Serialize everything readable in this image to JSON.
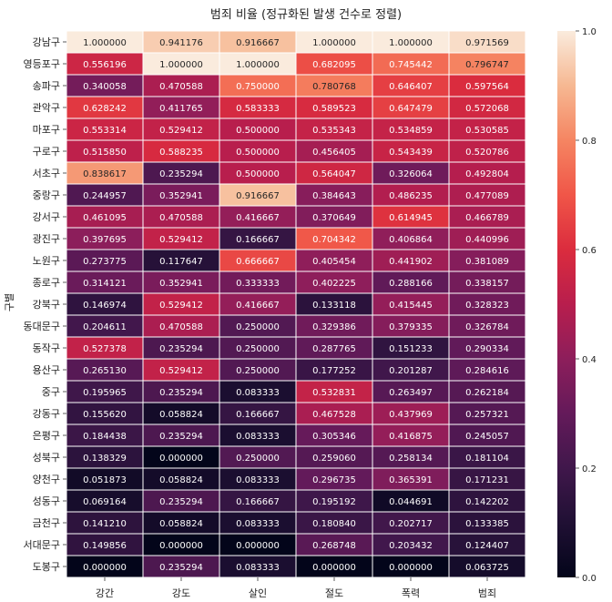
{
  "chart_data": {
    "type": "heatmap",
    "title": "범죄 비율 (정규화된 발생 건수로 정렬)",
    "xlabel": "",
    "ylabel": "구별",
    "columns": [
      "강간",
      "강도",
      "살인",
      "절도",
      "폭력",
      "범죄"
    ],
    "rows": [
      "강남구",
      "영등포구",
      "송파구",
      "관악구",
      "마포구",
      "구로구",
      "서초구",
      "중랑구",
      "강서구",
      "광진구",
      "노원구",
      "종로구",
      "강북구",
      "동대문구",
      "동작구",
      "용산구",
      "중구",
      "강동구",
      "은평구",
      "성북구",
      "양천구",
      "성동구",
      "금천구",
      "서대문구",
      "도봉구"
    ],
    "values": [
      [
        "1.000000",
        "0.941176",
        "0.916667",
        "1.000000",
        "1.000000",
        "0.971569"
      ],
      [
        "0.556196",
        "1.000000",
        "1.000000",
        "0.682095",
        "0.745442",
        "0.796747"
      ],
      [
        "0.340058",
        "0.470588",
        "0.750000",
        "0.780768",
        "0.646407",
        "0.597564"
      ],
      [
        "0.628242",
        "0.411765",
        "0.583333",
        "0.589523",
        "0.647479",
        "0.572068"
      ],
      [
        "0.553314",
        "0.529412",
        "0.500000",
        "0.535343",
        "0.534859",
        "0.530585"
      ],
      [
        "0.515850",
        "0.588235",
        "0.500000",
        "0.456405",
        "0.543439",
        "0.520786"
      ],
      [
        "0.838617",
        "0.235294",
        "0.500000",
        "0.564047",
        "0.326064",
        "0.492804"
      ],
      [
        "0.244957",
        "0.352941",
        "0.916667",
        "0.384643",
        "0.486235",
        "0.477089"
      ],
      [
        "0.461095",
        "0.470588",
        "0.416667",
        "0.370649",
        "0.614945",
        "0.466789"
      ],
      [
        "0.397695",
        "0.529412",
        "0.166667",
        "0.704342",
        "0.406864",
        "0.440996"
      ],
      [
        "0.273775",
        "0.117647",
        "0.666667",
        "0.405454",
        "0.441902",
        "0.381089"
      ],
      [
        "0.314121",
        "0.352941",
        "0.333333",
        "0.402225",
        "0.288166",
        "0.338157"
      ],
      [
        "0.146974",
        "0.529412",
        "0.416667",
        "0.133118",
        "0.415445",
        "0.328323"
      ],
      [
        "0.204611",
        "0.470588",
        "0.250000",
        "0.329386",
        "0.379335",
        "0.326784"
      ],
      [
        "0.527378",
        "0.235294",
        "0.250000",
        "0.287765",
        "0.151233",
        "0.290334"
      ],
      [
        "0.265130",
        "0.529412",
        "0.250000",
        "0.177252",
        "0.201287",
        "0.284616"
      ],
      [
        "0.195965",
        "0.235294",
        "0.083333",
        "0.532831",
        "0.263497",
        "0.262184"
      ],
      [
        "0.155620",
        "0.058824",
        "0.166667",
        "0.467528",
        "0.437969",
        "0.257321"
      ],
      [
        "0.184438",
        "0.235294",
        "0.083333",
        "0.305346",
        "0.416875",
        "0.245057"
      ],
      [
        "0.138329",
        "0.000000",
        "0.250000",
        "0.259060",
        "0.258134",
        "0.181104"
      ],
      [
        "0.051873",
        "0.058824",
        "0.083333",
        "0.296735",
        "0.365391",
        "0.171231"
      ],
      [
        "0.069164",
        "0.235294",
        "0.166667",
        "0.195192",
        "0.044691",
        "0.142202"
      ],
      [
        "0.141210",
        "0.058824",
        "0.083333",
        "0.180840",
        "0.202717",
        "0.133385"
      ],
      [
        "0.149856",
        "0.000000",
        "0.000000",
        "0.268748",
        "0.203432",
        "0.124407"
      ],
      [
        "0.000000",
        "0.235294",
        "0.083333",
        "0.000000",
        "0.000000",
        "0.063725"
      ]
    ],
    "vmin": 0.0,
    "vmax": 1.0,
    "colormap": "rocket",
    "colorbar_ticks": [
      "0.0",
      "0.2",
      "0.4",
      "0.6",
      "0.8",
      "1.0"
    ]
  }
}
